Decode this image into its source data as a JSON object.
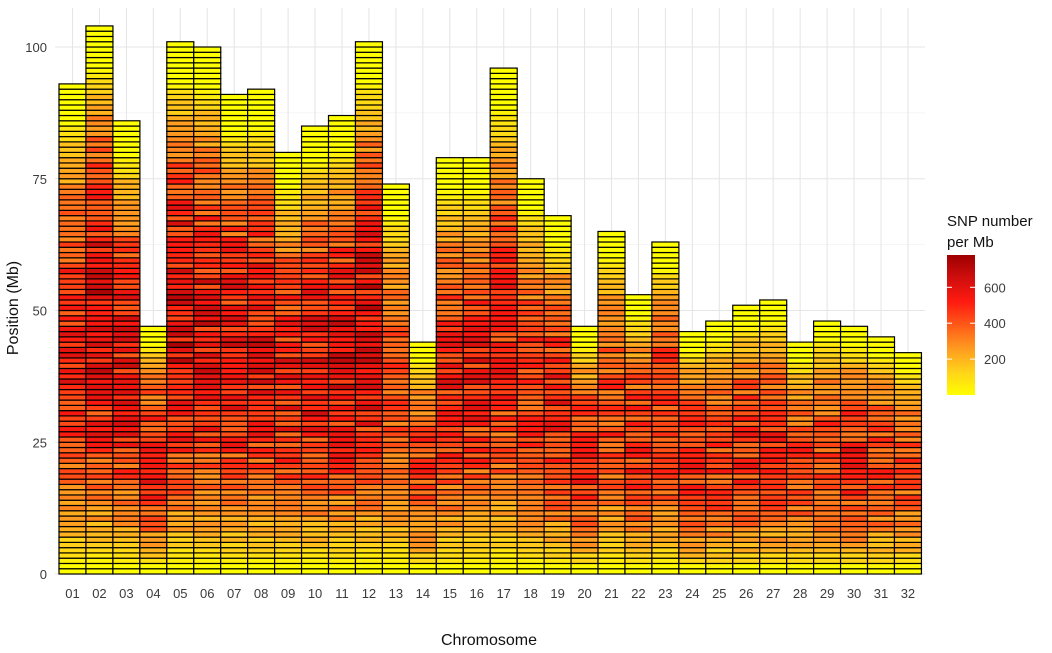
{
  "chart_data": {
    "type": "heatmap",
    "subtype": "chromosome density map",
    "title": "",
    "xlabel": "Chromosome",
    "ylabel": "Position (Mb)",
    "ylim": [
      0,
      105
    ],
    "y_ticks": [
      0,
      25,
      50,
      75,
      100
    ],
    "grid": true,
    "bin_size_mb": 1,
    "categories": [
      "01",
      "02",
      "03",
      "04",
      "05",
      "06",
      "07",
      "08",
      "09",
      "10",
      "11",
      "12",
      "13",
      "14",
      "15",
      "16",
      "17",
      "18",
      "19",
      "20",
      "21",
      "22",
      "23",
      "24",
      "25",
      "26",
      "27",
      "28",
      "29",
      "30",
      "31",
      "32"
    ],
    "chromosome_length_mb": [
      93,
      104,
      86,
      47,
      101,
      100,
      91,
      92,
      80,
      85,
      87,
      101,
      74,
      44,
      79,
      79,
      96,
      75,
      68,
      47,
      65,
      53,
      63,
      46,
      48,
      51,
      52,
      44,
      48,
      47,
      45,
      42
    ],
    "density_profile_maxima_snp_per_mb": [
      650,
      760,
      700,
      650,
      780,
      720,
      700,
      700,
      680,
      700,
      720,
      760,
      520,
      580,
      650,
      650,
      640,
      600,
      660,
      620,
      560,
      620,
      620,
      640,
      600,
      620,
      620,
      560,
      560,
      620,
      560,
      520
    ],
    "legend": {
      "title": "SNP number\nper Mb",
      "title_lines": [
        "SNP number",
        "per Mb"
      ],
      "position": "right",
      "min": 0,
      "max": 780,
      "ticks": [
        200,
        400,
        600
      ],
      "tick_labels": [
        "200",
        "400",
        "600"
      ],
      "colors": [
        "#ffff00",
        "#ffd21a",
        "#ff9a20",
        "#ff5a18",
        "#ff1a10",
        "#d10e0e",
        "#9e0000"
      ]
    }
  }
}
